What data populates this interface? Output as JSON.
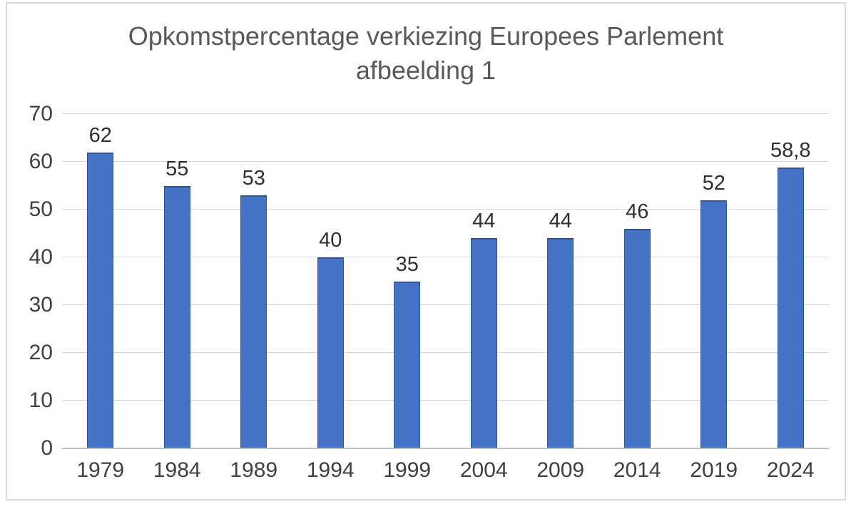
{
  "chart_data": {
    "type": "bar",
    "title": "Opkomstpercentage verkiezing Europees Parlement afbeelding 1",
    "title_lines": {
      "line1": "Opkomstpercentage verkiezing Europees Parlement",
      "line2": "afbeelding 1"
    },
    "categories": [
      "1979",
      "1984",
      "1989",
      "1994",
      "1999",
      "2004",
      "2009",
      "2014",
      "2019",
      "2024"
    ],
    "values": [
      62,
      55,
      53,
      40,
      35,
      44,
      44,
      46,
      52,
      58.8
    ],
    "value_labels": [
      "62",
      "55",
      "53",
      "40",
      "35",
      "44",
      "44",
      "46",
      "52",
      "58,8"
    ],
    "xlabel": "",
    "ylabel": "",
    "ylim": [
      0,
      70
    ],
    "yticks": [
      0,
      10,
      20,
      30,
      40,
      50,
      60,
      70
    ],
    "grid": true,
    "legend": false,
    "bar_color": "#4472C4"
  },
  "colors": {
    "bar_fill": "#4472C4",
    "bar_edge": "#2F5597",
    "gridline": "#D9D9D9",
    "axis_line": "#BFBFBF",
    "title_text": "#595959",
    "tick_text": "#404040",
    "label_text": "#303030",
    "frame_border": "#D9D9D9",
    "background": "#FFFFFF"
  }
}
